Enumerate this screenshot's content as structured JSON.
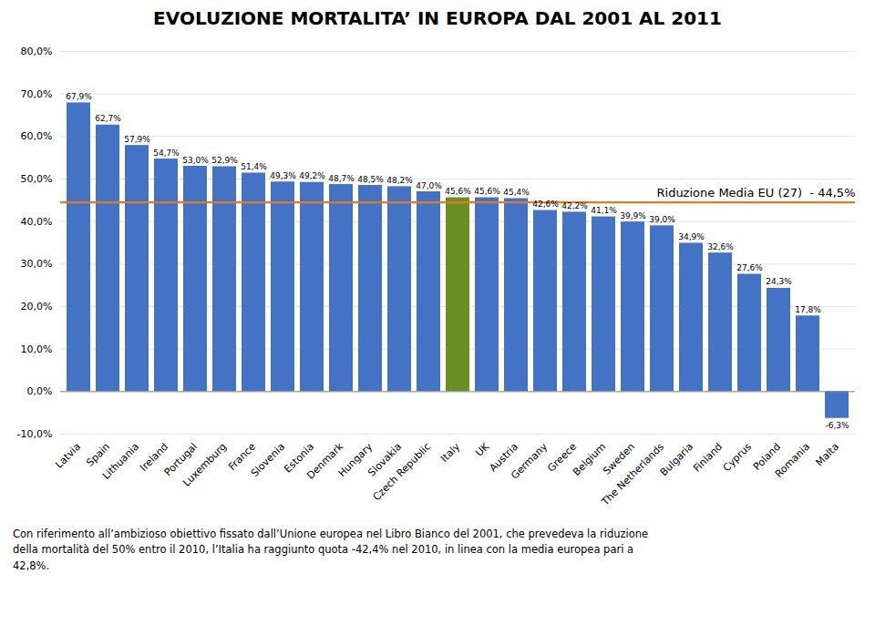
{
  "chart_data": {
    "type": "bar",
    "title": "EVOLUZIONE MORTALITA’ IN EUROPA DAL 2001  AL 2011",
    "categories": [
      "Latvia",
      "Spain",
      "Lithuania",
      "Ireland",
      "Portugal",
      "Luxemburg",
      "France",
      "Slovenia",
      "Estonia",
      "Denmark",
      "Hungary",
      "Slovakia",
      "Czech Republic",
      "Italy",
      "UK",
      "Austria",
      "Germany",
      "Greece",
      "Belgium",
      "Sweden",
      "The Netherlands",
      "Bulgaria",
      "Finland",
      "Cyprus",
      "Poland",
      "Romania",
      "Malta"
    ],
    "values": [
      67.9,
      62.7,
      57.9,
      54.7,
      53.0,
      52.9,
      51.4,
      49.3,
      49.2,
      48.7,
      48.5,
      48.2,
      47.0,
      45.6,
      45.6,
      45.4,
      42.6,
      42.2,
      41.1,
      39.9,
      39.0,
      34.9,
      32.6,
      27.6,
      24.3,
      17.8,
      -6.3
    ],
    "value_labels": [
      "67,9%",
      "62,7%",
      "57,9%",
      "54,7%",
      "53,0%",
      "52,9%",
      "51,4%",
      "49,3%",
      "49,2%",
      "48,7%",
      "48,5%",
      "48,2%",
      "47,0%",
      "45,6%",
      "45,6%",
      "45,4%",
      "42,6%",
      "42,2%",
      "41,1%",
      "39,9%",
      "39,0%",
      "34,9%",
      "32,6%",
      "27,6%",
      "24,3%",
      "17,8%",
      "-6,3%"
    ],
    "data_labels": true,
    "colors": [
      "#4472C4",
      "#4472C4",
      "#4472C4",
      "#4472C4",
      "#4472C4",
      "#4472C4",
      "#4472C4",
      "#4472C4",
      "#4472C4",
      "#4472C4",
      "#4472C4",
      "#4472C4",
      "#4472C4",
      "#6B8E23",
      "#4472C4",
      "#4472C4",
      "#4472C4",
      "#4472C4",
      "#4472C4",
      "#4472C4",
      "#4472C4",
      "#4472C4",
      "#4472C4",
      "#4472C4",
      "#4472C4",
      "#4472C4",
      "#4472C4"
    ],
    "reference_line": {
      "value": 44.5,
      "label": "Riduzione Media EU (27)  - 44,5%",
      "color": "#E87722"
    },
    "ylim": [
      -10,
      80
    ],
    "yticks": [
      {
        "value": -10,
        "label": "-10,0%"
      },
      {
        "value": 0,
        "label": "0,0%"
      },
      {
        "value": 10,
        "label": "10,0%"
      },
      {
        "value": 20,
        "label": "20,0%"
      },
      {
        "value": 30,
        "label": "30,0%"
      },
      {
        "value": 40,
        "label": "40,0%"
      },
      {
        "value": 50,
        "label": "50,0%"
      },
      {
        "value": 60,
        "label": "60,0%"
      },
      {
        "value": 70,
        "label": "70,0%"
      },
      {
        "value": 80,
        "label": "80,0%"
      }
    ],
    "grid": true,
    "footnote": "Con riferimento all’ambizioso obiettivo fissato dall’Unione europea nel Libro Bianco del 2001, che prevedeva la riduzione\ndella mortalità del 50% entro il 2010, l’Italia ha raggiunto quota -42,4% nel 2010, in linea con la media europea pari a\n42,8%."
  }
}
